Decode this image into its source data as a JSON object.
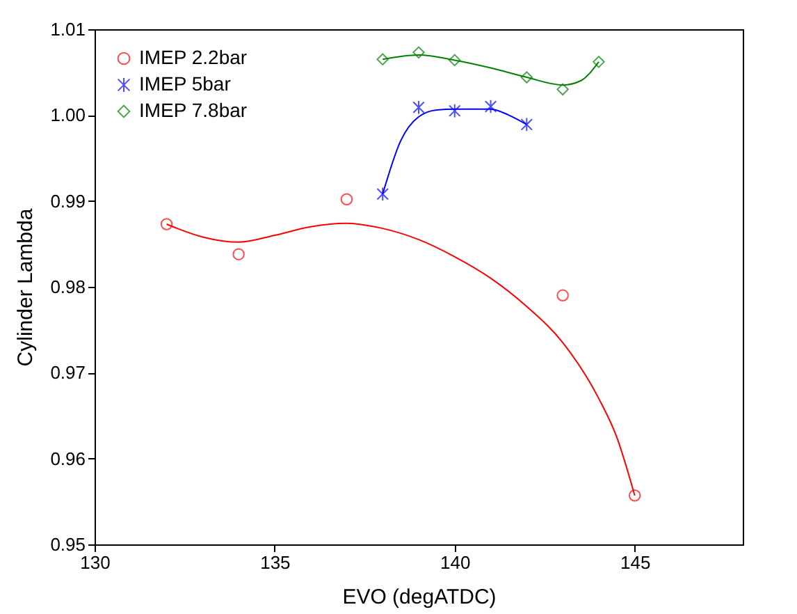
{
  "chart_data": {
    "type": "scatter",
    "xlabel": "EVO (degATDC)",
    "ylabel": "Cylinder Lambda",
    "xlim": [
      130,
      148
    ],
    "xticks": [
      130,
      135,
      140,
      145
    ],
    "ylim": [
      0.95,
      1.01
    ],
    "yticks": [
      0.95,
      0.96,
      0.97,
      0.98,
      0.99,
      {
        "value": 1,
        "label": "1.00"
      },
      1.01
    ],
    "grid": false,
    "legend": "top left",
    "series": [
      {
        "name": "IMEP 2.2bar",
        "marker": "circle",
        "color": "#ff0000",
        "x": [
          132,
          134,
          137,
          143,
          145
        ],
        "values": [
          0.9873,
          0.9838,
          0.9902,
          0.979,
          0.9557
        ]
      },
      {
        "name": "IMEP 5bar",
        "marker": "cross",
        "color": "#0000ff",
        "x": [
          138,
          139,
          140,
          141,
          142
        ],
        "values": [
          0.9908,
          1.0009,
          1.0005,
          1.001,
          0.9989
        ]
      },
      {
        "name": "IMEP 7.8bar",
        "marker": "diamond",
        "color": "#008000",
        "x": [
          138,
          139,
          140,
          142,
          143,
          144
        ],
        "values": [
          1.0065,
          1.0073,
          1.0064,
          1.0044,
          1.003,
          1.0062
        ]
      },
      {
        "type": "line",
        "color": "#ff0000",
        "x": [
          132,
          133,
          134,
          135,
          136,
          137,
          138,
          139,
          140,
          141,
          142,
          143,
          144,
          144.5,
          145
        ],
        "values": [
          0.9873,
          0.9858,
          0.9852,
          0.986,
          0.987,
          0.9874,
          0.9868,
          0.9855,
          0.9835,
          0.981,
          0.9777,
          0.9735,
          0.967,
          0.9625,
          0.9557
        ]
      },
      {
        "type": "line",
        "color": "#0000ff",
        "x": [
          138,
          138.5,
          139,
          139.5,
          140,
          140.5,
          141,
          141.5,
          142
        ],
        "values": [
          0.9908,
          0.997,
          0.9998,
          1.0006,
          1.0007,
          1.0007,
          1.0007,
          1.0,
          0.9989
        ]
      },
      {
        "type": "line",
        "color": "#008000",
        "x": [
          138,
          139,
          140,
          141,
          142,
          143,
          143.5,
          144
        ],
        "values": [
          1.0065,
          1.007,
          1.0064,
          1.0055,
          1.0044,
          1.0035,
          1.004,
          1.0062
        ]
      }
    ]
  }
}
